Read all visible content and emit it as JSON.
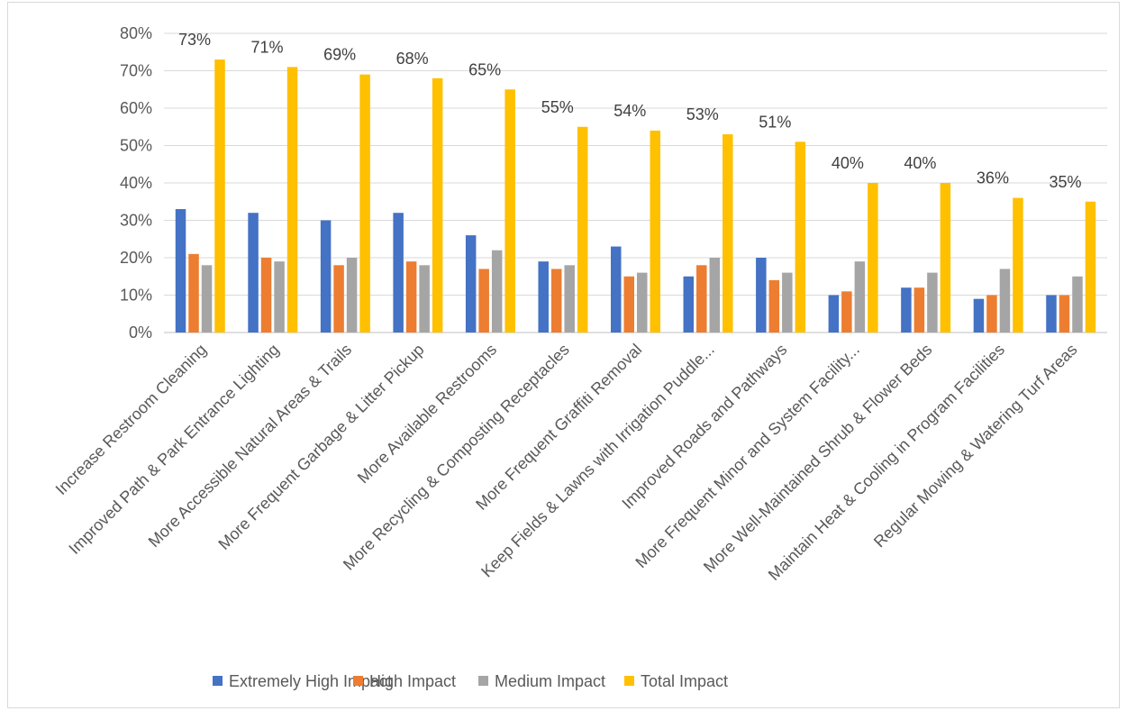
{
  "chart_data": {
    "type": "bar",
    "categories": [
      "Increase Restroom Cleaning",
      "Improved Path & Park Entrance Lighting",
      "More Accessible Natural Areas & Trails",
      "More Frequent Garbage & Litter Pickup",
      "More Available Restrooms",
      "More Recycling & Composting Receptacles",
      "More Frequent Graffiti Removal",
      "Keep Fields & Lawns with Irrigation Puddle...",
      "Improved Roads and Pathways",
      "More Frequent Minor and System Facility...",
      "More Well-Maintained Shrub & Flower Beds",
      "Maintain Heat & Cooling in Program Facilities",
      "Regular Mowing & Watering Turf Areas"
    ],
    "series": [
      {
        "name": "Extremely High Impact",
        "color": "#4472C4",
        "values": [
          33,
          32,
          30,
          32,
          26,
          19,
          23,
          15,
          20,
          10,
          12,
          9,
          10
        ]
      },
      {
        "name": "High Impact",
        "color": "#ED7D31",
        "values": [
          21,
          20,
          18,
          19,
          17,
          17,
          15,
          18,
          14,
          11,
          12,
          10,
          10
        ]
      },
      {
        "name": "Medium Impact",
        "color": "#A5A5A5",
        "values": [
          18,
          19,
          20,
          18,
          22,
          18,
          16,
          20,
          16,
          19,
          16,
          17,
          15
        ]
      },
      {
        "name": "Total Impact",
        "color": "#FFC000",
        "values": [
          73,
          71,
          69,
          68,
          65,
          55,
          54,
          53,
          51,
          40,
          40,
          36,
          35
        ]
      }
    ],
    "data_labels": [
      "73%",
      "71%",
      "69%",
      "68%",
      "65%",
      "55%",
      "54%",
      "53%",
      "51%",
      "40%",
      "40%",
      "36%",
      "35%"
    ],
    "ylim": [
      0,
      80
    ],
    "yticks": [
      0,
      10,
      20,
      30,
      40,
      50,
      60,
      70,
      80
    ],
    "ytick_labels": [
      "0%",
      "10%",
      "20%",
      "30%",
      "40%",
      "50%",
      "60%",
      "70%",
      "80%"
    ],
    "grid": true,
    "legend_position": "bottom",
    "title": "",
    "xlabel": "",
    "ylabel": ""
  }
}
